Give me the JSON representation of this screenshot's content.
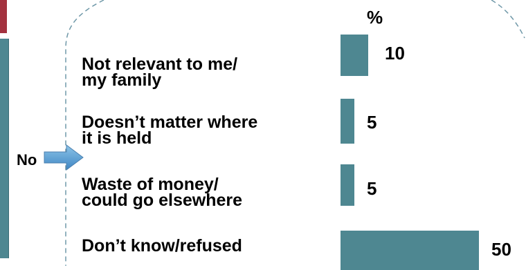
{
  "chart_data": {
    "type": "bar",
    "orientation": "horizontal",
    "unit": "%",
    "group_label": "No",
    "categories": [
      "Not relevant to me/\nmy family",
      "Doesn’t matter where\nit is held",
      "Waste of money/\ncould go elsewhere",
      "Don’t know/refused"
    ],
    "values": [
      10,
      5,
      5,
      50
    ],
    "value_labels": [
      "10",
      "5",
      "5",
      "50"
    ],
    "xlim": [
      0,
      55
    ],
    "bar_color": "#4e8791"
  },
  "colors": {
    "accent_red": "#a3323f",
    "teal": "#4e8791",
    "arrow": "#5b9bd5",
    "dashed_outline": "#6f98a8"
  },
  "icons": {
    "pointer": "right-arrow-icon"
  }
}
